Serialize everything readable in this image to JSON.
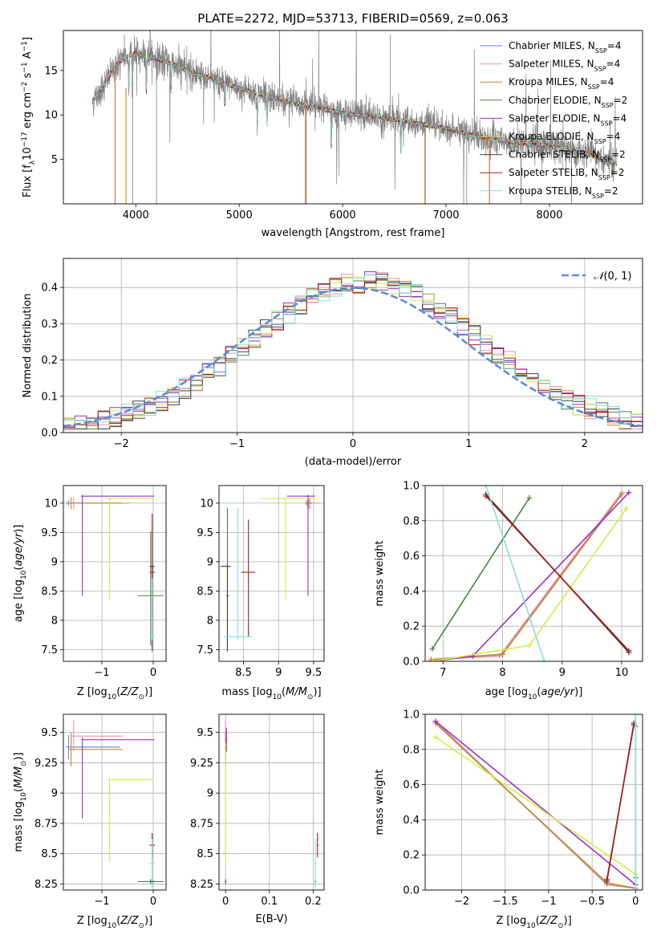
{
  "figure": {
    "title": "PLATE=2272, MJD=53713, FIBERID=0569, z=0.063"
  },
  "colors": {
    "Chabrier MILES": "#6a7fd6",
    "Salpeter MILES": "#ec8fb0",
    "Kroupa MILES": "#c08a2c",
    "Chabrier ELODIE": "#4f7f4f",
    "Salpeter ELODIE": "#9b2fc4",
    "Kroupa ELODIE": "#d4ec4a",
    "Chabrier STELIB": "#404040",
    "Salpeter STELIB": "#b01818",
    "Kroupa STELIB": "#86dde0",
    "data": "#808080",
    "model": "#e07840",
    "normal": "#5b8fd6"
  },
  "chart_data": [
    {
      "id": "spectrum",
      "type": "line",
      "xlabel": "wavelength [Angstrom, rest frame]",
      "ylabel": "Flux [f_λ10^−17 erg cm^−2 s^−1 A^−1]",
      "xlim": [
        3300,
        8900
      ],
      "ylim": [
        0,
        19.5
      ],
      "xticks": [
        4000,
        5000,
        6000,
        7000,
        8000
      ],
      "yticks": [
        5,
        10,
        15
      ],
      "legend_position": "upper right",
      "legend": [
        {
          "name": "Chabrier MILES",
          "nssp": "4"
        },
        {
          "name": "Salpeter MILES",
          "nssp": "4"
        },
        {
          "name": "Kroupa MILES",
          "nssp": "4"
        },
        {
          "name": "Chabrier ELODIE",
          "nssp": "2"
        },
        {
          "name": "Salpeter ELODIE",
          "nssp": "4"
        },
        {
          "name": "Kroupa ELODIE",
          "nssp": "4"
        },
        {
          "name": "Chabrier STELIB",
          "nssp": "2"
        },
        {
          "name": "Salpeter STELIB",
          "nssp": "2"
        },
        {
          "name": "Kroupa STELIB",
          "nssp": "2"
        }
      ],
      "continuum": [
        [
          3580,
          11.5
        ],
        [
          3700,
          13.5
        ],
        [
          3800,
          15.5
        ],
        [
          3900,
          16.5
        ],
        [
          4000,
          17.0
        ],
        [
          4100,
          16.6
        ],
        [
          4300,
          16.0
        ],
        [
          4500,
          15.0
        ],
        [
          4800,
          13.8
        ],
        [
          5000,
          13.0
        ],
        [
          5300,
          12.0
        ],
        [
          5600,
          11.2
        ],
        [
          6000,
          10.2
        ],
        [
          6300,
          9.8
        ],
        [
          6600,
          9.3
        ],
        [
          7000,
          8.5
        ],
        [
          7300,
          7.6
        ],
        [
          7600,
          7.0
        ],
        [
          8000,
          6.5
        ],
        [
          8400,
          5.5
        ],
        [
          8650,
          4.5
        ]
      ]
    },
    {
      "id": "residuals",
      "type": "histogram",
      "xlabel": "(data-model)/error",
      "ylabel": "Normed distribution",
      "xlim": [
        -2.5,
        2.5
      ],
      "ylim": [
        0,
        0.48
      ],
      "xticks": [
        -2,
        -1,
        0,
        1,
        2
      ],
      "yticks": [
        0.0,
        0.1,
        0.2,
        0.3,
        0.4
      ],
      "legend_label": "N(0,1)",
      "legend_position": "upper right",
      "bin_width": 0.1
    },
    {
      "id": "age_vs_Z",
      "type": "errorbar",
      "xlabel": "Z [log10(Z/Z⊙)]",
      "ylabel": "age  [log10(age/yr)]",
      "xlim": [
        -1.75,
        0.25
      ],
      "ylim": [
        7.3,
        10.3
      ],
      "xticks": [
        -1,
        0
      ],
      "yticks": [
        7.5,
        8.0,
        8.5,
        9.0,
        9.5,
        10.0
      ],
      "points": [
        {
          "model": "Chabrier MILES",
          "x": -1.65,
          "xerr": [
            0.05,
            1.05
          ],
          "y": 10.0,
          "yerr": [
            0.05,
            0.05
          ]
        },
        {
          "model": "Salpeter MILES",
          "x": -1.55,
          "xerr": [
            0.1,
            1.1
          ],
          "y": 10.0,
          "yerr": [
            0.1,
            0.1
          ]
        },
        {
          "model": "Kroupa MILES",
          "x": -1.6,
          "xerr": [
            0.05,
            1.0
          ],
          "y": 10.0,
          "yerr": [
            0.1,
            0.1
          ]
        },
        {
          "model": "Chabrier ELODIE",
          "x": -0.05,
          "xerr": [
            0.25,
            0.25
          ],
          "y": 8.42,
          "yerr": [
            0.85,
            1.1
          ]
        },
        {
          "model": "Salpeter ELODIE",
          "x": -1.38,
          "xerr": [
            0.02,
            1.4
          ],
          "y": 10.12,
          "yerr": [
            1.7,
            0.02
          ]
        },
        {
          "model": "Kroupa ELODIE",
          "x": -0.85,
          "xerr": [
            0.02,
            0.85
          ],
          "y": 10.08,
          "yerr": [
            1.72,
            0.02
          ]
        },
        {
          "model": "Chabrier STELIB",
          "x": -0.02,
          "xerr": [
            0.05,
            0.05
          ],
          "y": 8.92,
          "yerr": [
            1.45,
            0.05
          ]
        },
        {
          "model": "Salpeter STELIB",
          "x": -0.02,
          "xerr": [
            0.05,
            0.05
          ],
          "y": 8.82,
          "yerr": [
            1.0,
            1.0
          ]
        },
        {
          "model": "Kroupa STELIB",
          "x": -0.02,
          "xerr": [
            0.05,
            0.05
          ],
          "y": 7.72,
          "yerr": [
            0.05,
            1.0
          ]
        }
      ]
    },
    {
      "id": "age_vs_mass",
      "type": "errorbar",
      "xlabel": "mass [log10(M/M⊙)]",
      "ylabel": "",
      "xlim": [
        8.15,
        9.65
      ],
      "ylim": [
        7.3,
        10.3
      ],
      "xticks": [
        8.5,
        9.0,
        9.5
      ],
      "yticks": [
        7.5,
        8.0,
        8.5,
        9.0,
        9.5,
        10.0
      ],
      "points": [
        {
          "model": "Chabrier MILES",
          "x": 9.4,
          "xerr": [
            0.02,
            0.1
          ],
          "y": 10.0,
          "yerr": [
            0.05,
            0.05
          ]
        },
        {
          "model": "Salpeter MILES",
          "x": 9.45,
          "xerr": [
            0.05,
            0.15
          ],
          "y": 10.0,
          "yerr": [
            0.1,
            0.1
          ]
        },
        {
          "model": "Kroupa MILES",
          "x": 9.43,
          "xerr": [
            0.05,
            0.05
          ],
          "y": 10.0,
          "yerr": [
            0.1,
            0.1
          ]
        },
        {
          "model": "Chabrier ELODIE",
          "x": 8.27,
          "xerr": [
            0.02,
            0.02
          ],
          "y": 8.42,
          "yerr": [
            0.85,
            1.5
          ]
        },
        {
          "model": "Salpeter ELODIE",
          "x": 9.42,
          "xerr": [
            0.3,
            0.1
          ],
          "y": 10.12,
          "yerr": [
            1.7,
            0.02
          ]
        },
        {
          "model": "Kroupa ELODIE",
          "x": 9.1,
          "xerr": [
            0.35,
            0.45
          ],
          "y": 10.08,
          "yerr": [
            1.72,
            0.02
          ]
        },
        {
          "model": "Chabrier STELIB",
          "x": 8.27,
          "xerr": [
            0.1,
            0.05
          ],
          "y": 8.92,
          "yerr": [
            1.45,
            0.05
          ]
        },
        {
          "model": "Salpeter STELIB",
          "x": 8.57,
          "xerr": [
            0.1,
            0.1
          ],
          "y": 8.82,
          "yerr": [
            1.1,
            0.9
          ]
        },
        {
          "model": "Kroupa STELIB",
          "x": 8.42,
          "xerr": [
            0.2,
            0.2
          ],
          "y": 7.72,
          "yerr": [
            0.05,
            2.2
          ]
        }
      ]
    },
    {
      "id": "massweight_vs_age",
      "type": "line",
      "xlabel": "age  [log10(age/yr)]",
      "ylabel": "mass weight",
      "xlim": [
        6.7,
        10.35
      ],
      "ylim": [
        0,
        1.0
      ],
      "xticks": [
        7,
        8,
        9,
        10
      ],
      "yticks": [
        0.0,
        0.2,
        0.4,
        0.6,
        0.8,
        1.0
      ],
      "series": [
        {
          "model": "Chabrier MILES",
          "x": [
            6.8,
            8.0,
            10.0
          ],
          "y": [
            0.01,
            0.04,
            0.95
          ]
        },
        {
          "model": "Salpeter MILES",
          "x": [
            6.8,
            7.95,
            10.0
          ],
          "y": [
            0.01,
            0.03,
            0.96
          ]
        },
        {
          "model": "Kroupa MILES",
          "x": [
            6.8,
            8.0,
            10.0
          ],
          "y": [
            0.01,
            0.04,
            0.95
          ]
        },
        {
          "model": "Chabrier ELODIE",
          "x": [
            6.82,
            8.45
          ],
          "y": [
            0.07,
            0.93
          ]
        },
        {
          "model": "Salpeter ELODIE",
          "x": [
            6.82,
            7.5,
            10.12
          ],
          "y": [
            0.0,
            0.03,
            0.96
          ]
        },
        {
          "model": "Kroupa ELODIE",
          "x": [
            6.82,
            8.45,
            10.08
          ],
          "y": [
            0.0,
            0.09,
            0.87
          ]
        },
        {
          "model": "Chabrier STELIB",
          "x": [
            7.72,
            10.12
          ],
          "y": [
            0.95,
            0.05
          ]
        },
        {
          "model": "Salpeter STELIB",
          "x": [
            7.72,
            10.12
          ],
          "y": [
            0.94,
            0.06
          ]
        },
        {
          "model": "Kroupa STELIB",
          "x": [
            7.72,
            8.7
          ],
          "y": [
            1.0,
            0.0
          ]
        }
      ]
    },
    {
      "id": "mass_vs_Z",
      "type": "errorbar",
      "xlabel": "Z [log10(Z/Z⊙)]",
      "ylabel": "mass [log10(M/M⊙)]",
      "xlim": [
        -1.75,
        0.25
      ],
      "ylim": [
        8.2,
        9.65
      ],
      "xticks": [
        -1,
        0
      ],
      "yticks": [
        8.25,
        8.5,
        8.75,
        9.0,
        9.25,
        9.5
      ],
      "points": [
        {
          "model": "Chabrier MILES",
          "x": -1.65,
          "xerr": [
            0.05,
            1.0
          ],
          "y": 9.38,
          "yerr": [
            0.1,
            0.1
          ]
        },
        {
          "model": "Salpeter MILES",
          "x": -1.55,
          "xerr": [
            0.05,
            0.95
          ],
          "y": 9.47,
          "yerr": [
            0.12,
            0.13
          ]
        },
        {
          "model": "Kroupa MILES",
          "x": -1.6,
          "xerr": [
            0.05,
            1.0
          ],
          "y": 9.36,
          "yerr": [
            0.14,
            0.14
          ]
        },
        {
          "model": "Chabrier ELODIE",
          "x": -0.05,
          "xerr": [
            0.25,
            0.25
          ],
          "y": 8.27,
          "yerr": [
            0.02,
            0.02
          ]
        },
        {
          "model": "Salpeter ELODIE",
          "x": -1.38,
          "xerr": [
            0.02,
            1.4
          ],
          "y": 9.44,
          "yerr": [
            0.65,
            0.02
          ]
        },
        {
          "model": "Kroupa ELODIE",
          "x": -0.85,
          "xerr": [
            0.02,
            0.85
          ],
          "y": 9.11,
          "yerr": [
            0.68,
            0.02
          ]
        },
        {
          "model": "Chabrier STELIB",
          "x": -0.02,
          "xerr": [
            0.05,
            0.05
          ],
          "y": 8.27,
          "yerr": [
            0.02,
            0.02
          ]
        },
        {
          "model": "Salpeter STELIB",
          "x": -0.02,
          "xerr": [
            0.05,
            0.05
          ],
          "y": 8.57,
          "yerr": [
            0.1,
            0.1
          ]
        },
        {
          "model": "Kroupa STELIB",
          "x": -0.02,
          "xerr": [
            0.05,
            0.05
          ],
          "y": 8.42,
          "yerr": [
            0.2,
            0.2
          ]
        }
      ]
    },
    {
      "id": "mass_vs_ebv",
      "type": "errorbar",
      "xlabel": "E(B-V)",
      "ylabel": "",
      "xlim": [
        -0.015,
        0.225
      ],
      "ylim": [
        8.2,
        9.65
      ],
      "xticks": [
        0.0,
        0.1,
        0.2
      ],
      "yticks": [
        8.25,
        8.5,
        8.75,
        9.0,
        9.25,
        9.5
      ],
      "points": [
        {
          "model": "Chabrier MILES",
          "x": 0.0,
          "xerr": [
            0.002,
            0.002
          ],
          "y": 9.38,
          "yerr": [
            0.1,
            0.1
          ]
        },
        {
          "model": "Salpeter MILES",
          "x": 0.0,
          "xerr": [
            0.002,
            0.002
          ],
          "y": 9.47,
          "yerr": [
            0.12,
            0.13
          ]
        },
        {
          "model": "Kroupa MILES",
          "x": 0.0,
          "xerr": [
            0.002,
            0.002
          ],
          "y": 9.36,
          "yerr": [
            0.14,
            0.14
          ]
        },
        {
          "model": "Chabrier ELODIE",
          "x": 0.0,
          "xerr": [
            0.002,
            0.002
          ],
          "y": 8.27,
          "yerr": [
            0.02,
            0.02
          ]
        },
        {
          "model": "Salpeter ELODIE",
          "x": 0.002,
          "xerr": [
            0.002,
            0.002
          ],
          "y": 9.44,
          "yerr": [
            0.1,
            0.1
          ]
        },
        {
          "model": "Kroupa ELODIE",
          "x": 0.0,
          "xerr": [
            0.002,
            0.002
          ],
          "y": 9.11,
          "yerr": [
            0.68,
            0.3
          ]
        },
        {
          "model": "Chabrier STELIB",
          "x": 0.205,
          "xerr": [
            0.002,
            0.002
          ],
          "y": 8.27,
          "yerr": [
            0.02,
            0.02
          ]
        },
        {
          "model": "Salpeter STELIB",
          "x": 0.21,
          "xerr": [
            0.002,
            0.002
          ],
          "y": 8.57,
          "yerr": [
            0.1,
            0.1
          ]
        },
        {
          "model": "Kroupa STELIB",
          "x": 0.205,
          "xerr": [
            0.002,
            0.002
          ],
          "y": 8.42,
          "yerr": [
            0.2,
            0.2
          ]
        }
      ]
    },
    {
      "id": "massweight_vs_Z",
      "type": "line",
      "xlabel": "Z [log10(Z/Z⊙)]",
      "ylabel": "mass weight",
      "xlim": [
        -2.42,
        0.08
      ],
      "ylim": [
        0,
        1.0
      ],
      "xticks": [
        -2.0,
        -1.5,
        -1.0,
        -0.5,
        0.0
      ],
      "yticks": [
        0.0,
        0.2,
        0.4,
        0.6,
        0.8,
        1.0
      ],
      "series": [
        {
          "model": "Chabrier MILES",
          "x": [
            -2.3,
            -0.33,
            0.0
          ],
          "y": [
            0.95,
            0.04,
            0.01
          ]
        },
        {
          "model": "Salpeter MILES",
          "x": [
            -2.3,
            -0.33,
            0.0
          ],
          "y": [
            0.96,
            0.03,
            0.01
          ]
        },
        {
          "model": "Kroupa MILES",
          "x": [
            -2.3,
            -0.33,
            0.0
          ],
          "y": [
            0.95,
            0.04,
            0.01
          ]
        },
        {
          "model": "Chabrier ELODIE",
          "x": [
            0.0,
            0.0
          ],
          "y": [
            0.07,
            0.93
          ]
        },
        {
          "model": "Salpeter ELODIE",
          "x": [
            -2.3,
            0.0
          ],
          "y": [
            0.96,
            0.03
          ]
        },
        {
          "model": "Kroupa ELODIE",
          "x": [
            -2.3,
            0.0
          ],
          "y": [
            0.87,
            0.09
          ]
        },
        {
          "model": "Chabrier STELIB",
          "x": [
            -0.33,
            -0.02
          ],
          "y": [
            0.05,
            0.95
          ]
        },
        {
          "model": "Salpeter STELIB",
          "x": [
            -0.33,
            -0.02
          ],
          "y": [
            0.06,
            0.94
          ]
        },
        {
          "model": "Kroupa STELIB",
          "x": [
            0.0,
            0.0
          ],
          "y": [
            0.0,
            1.0
          ]
        }
      ]
    }
  ]
}
